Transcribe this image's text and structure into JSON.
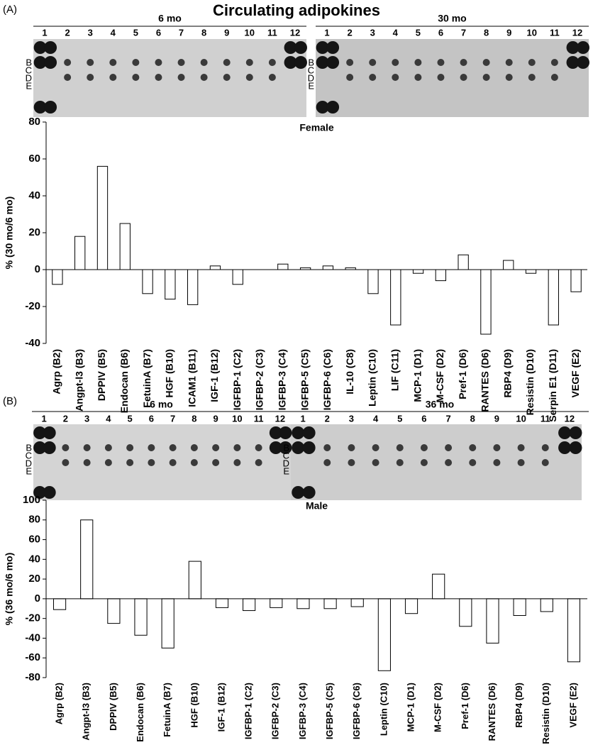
{
  "title": "Circulating adipokines",
  "panels": [
    {
      "label": "(A)",
      "blots": [
        {
          "label": "6 mo",
          "columns": [
            1,
            2,
            3,
            4,
            5,
            6,
            7,
            8,
            9,
            10,
            11,
            12
          ],
          "rows": [
            "B",
            "C",
            "D",
            "E"
          ]
        },
        {
          "label": "30 mo",
          "columns": [
            1,
            2,
            3,
            4,
            5,
            6,
            7,
            8,
            9,
            10,
            11,
            12
          ],
          "rows": [
            "B",
            "C",
            "D",
            "E"
          ]
        }
      ]
    },
    {
      "label": "(B)",
      "blots": [
        {
          "label": "6 mo",
          "columns": [
            1,
            2,
            3,
            4,
            5,
            6,
            7,
            8,
            9,
            10,
            11,
            12
          ],
          "rows": [
            "B",
            "C",
            "D",
            "E"
          ]
        },
        {
          "label": "36 mo",
          "columns": [
            1,
            2,
            3,
            4,
            5,
            6,
            7,
            8,
            9,
            10,
            11,
            12
          ],
          "rows": [
            "B",
            "C",
            "D",
            "E"
          ]
        }
      ]
    }
  ],
  "chart_data": [
    {
      "type": "bar",
      "title": "Female",
      "y_label": "% (30 mo/6 mo)",
      "categories": [
        "Agrp (B2)",
        "Angpt-l3 (B3)",
        "DPPIV (B5)",
        "Endocan (B6)",
        "FetuinA (B7)",
        "HGF (B10)",
        "ICAM1 (B11)",
        "IGF-1 (B12)",
        "IGFBP-1 (C2)",
        "IGFBP-2 (C3)",
        "IGFBP-3 (C4)",
        "IGFBP-5 (C5)",
        "IGFBP-6 (C6)",
        "IL-10 (C8)",
        "Leptin (C10)",
        "LIF (C11)",
        "MCP-1 (D1)",
        "M-CSF (D2)",
        "Pref-1 (D6)",
        "RANTES (D6)",
        "RBP4 (D9)",
        "Resistin (D10)",
        "Serpin E1 (D11)",
        "VEGF (E2)"
      ],
      "values": [
        -8,
        18,
        56,
        25,
        -13,
        -16,
        -19,
        2,
        -8,
        0,
        3,
        1,
        2,
        1,
        -13,
        -30,
        -2,
        -6,
        8,
        -35,
        5,
        -2,
        -30,
        -12
      ],
      "color": "#ffffff",
      "ylim": [
        -40,
        80
      ],
      "yticks": [
        -40,
        -20,
        0,
        20,
        40,
        60,
        80
      ]
    },
    {
      "type": "bar",
      "title": "Male",
      "y_label": "% (36 mo/6 mo)",
      "categories": [
        "Agrp (B2)",
        "Angpt-l3 (B3)",
        "DPPIV (B5)",
        "Endocan (B6)",
        "FetuinA (B7)",
        "HGF (B10)",
        "IGF-1 (B12)",
        "IGFBP-1 (C2)",
        "IGFBP-2 (C3)",
        "IGFBP-3 (C4)",
        "IGFBP-5 (C5)",
        "IGFBP-6 (C6)",
        "Leptin (C10)",
        "MCP-1 (D1)",
        "M-CSF (D2)",
        "Pref-1 (D6)",
        "RANTES (D6)",
        "RBP4 (D9)",
        "Resistin (D10)",
        "VEGF (E2)"
      ],
      "values": [
        -11,
        80,
        -25,
        -37,
        -50,
        38,
        -9,
        -12,
        -9,
        -10,
        -10,
        -8,
        -73,
        -15,
        25,
        -28,
        -45,
        -17,
        -13,
        -64
      ],
      "color": "#ffffff",
      "ylim": [
        -80,
        100
      ],
      "yticks": [
        -80,
        -60,
        -40,
        -20,
        0,
        20,
        40,
        60,
        80,
        100
      ]
    }
  ]
}
